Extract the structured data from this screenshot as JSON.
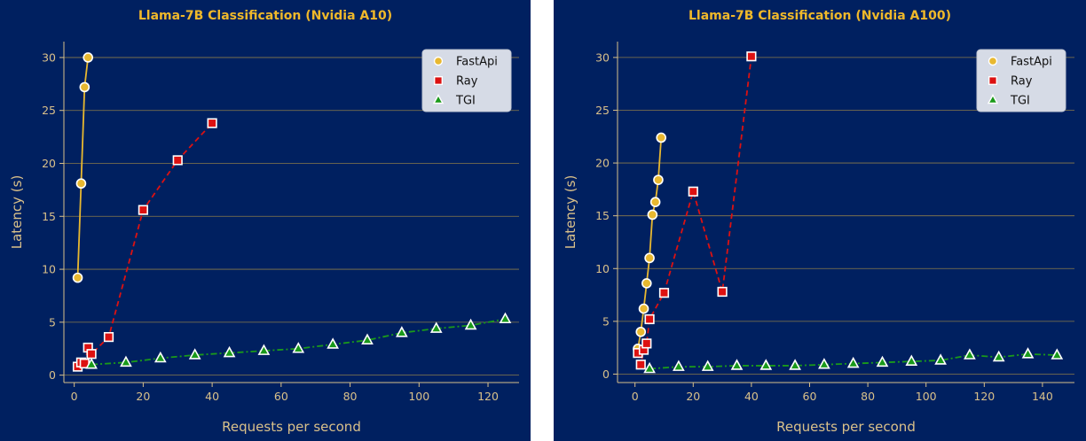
{
  "chart_data": [
    {
      "type": "line",
      "title": "Llama-7B Classification (Nvidia A10)",
      "xlabel": "Requests per second",
      "ylabel": "Latency (s)",
      "xlim": [
        -3,
        129
      ],
      "ylim": [
        -0.7,
        31.5
      ],
      "xticks": [
        0,
        20,
        40,
        60,
        80,
        100,
        120
      ],
      "yticks": [
        0,
        5,
        10,
        15,
        20,
        25,
        30
      ],
      "grid": "horizontal",
      "legend_position": "top-right",
      "series": [
        {
          "name": "FastApi",
          "marker": "circle",
          "line": "solid",
          "color": "#e8b830",
          "x": [
            1,
            2,
            3,
            4
          ],
          "y": [
            9.2,
            18.1,
            27.2,
            30.0
          ]
        },
        {
          "name": "Ray",
          "marker": "square",
          "line": "dashed",
          "color": "#dd1111",
          "x": [
            1,
            2,
            3,
            4,
            5,
            10,
            20,
            30,
            40
          ],
          "y": [
            0.8,
            1.2,
            1.1,
            2.6,
            2.0,
            3.6,
            15.6,
            20.3,
            23.8
          ]
        },
        {
          "name": "TGI",
          "marker": "triangle",
          "line": "dashdot",
          "color": "#1a9a1a",
          "x": [
            5,
            15,
            25,
            35,
            45,
            55,
            65,
            75,
            85,
            95,
            105,
            115,
            125
          ],
          "y": [
            1.0,
            1.2,
            1.6,
            1.9,
            2.1,
            2.3,
            2.5,
            2.9,
            3.3,
            4.0,
            4.4,
            4.7,
            5.3
          ]
        }
      ]
    },
    {
      "type": "line",
      "title": "Llama-7B Classification (Nvidia A100)",
      "xlabel": "Requests per second",
      "ylabel": "Latency (s)",
      "xlim": [
        -6,
        151
      ],
      "ylim": [
        -0.8,
        31.5
      ],
      "xticks": [
        0,
        20,
        40,
        60,
        80,
        100,
        120,
        140
      ],
      "yticks": [
        0,
        5,
        10,
        15,
        20,
        25,
        30
      ],
      "grid": "horizontal",
      "legend_position": "top-right",
      "series": [
        {
          "name": "FastApi",
          "marker": "circle",
          "line": "solid",
          "color": "#e8b830",
          "x": [
            1,
            2,
            3,
            4,
            5,
            6,
            7,
            8,
            9
          ],
          "y": [
            2.4,
            4.0,
            6.2,
            8.6,
            11.0,
            15.1,
            16.3,
            18.4,
            22.4
          ]
        },
        {
          "name": "Ray",
          "marker": "square",
          "line": "dashed",
          "color": "#dd1111",
          "x": [
            1,
            2,
            3,
            4,
            5,
            10,
            20,
            30,
            40
          ],
          "y": [
            2.0,
            0.9,
            2.3,
            2.9,
            5.2,
            7.7,
            17.3,
            7.8,
            30.1
          ]
        },
        {
          "name": "TGI",
          "marker": "triangle",
          "line": "dashdot",
          "color": "#1a9a1a",
          "x": [
            5,
            15,
            25,
            35,
            45,
            55,
            65,
            75,
            85,
            95,
            105,
            115,
            125,
            135,
            145
          ],
          "y": [
            0.5,
            0.7,
            0.7,
            0.8,
            0.8,
            0.8,
            0.9,
            1.0,
            1.1,
            1.2,
            1.3,
            1.8,
            1.6,
            1.9,
            1.8
          ]
        }
      ]
    }
  ]
}
